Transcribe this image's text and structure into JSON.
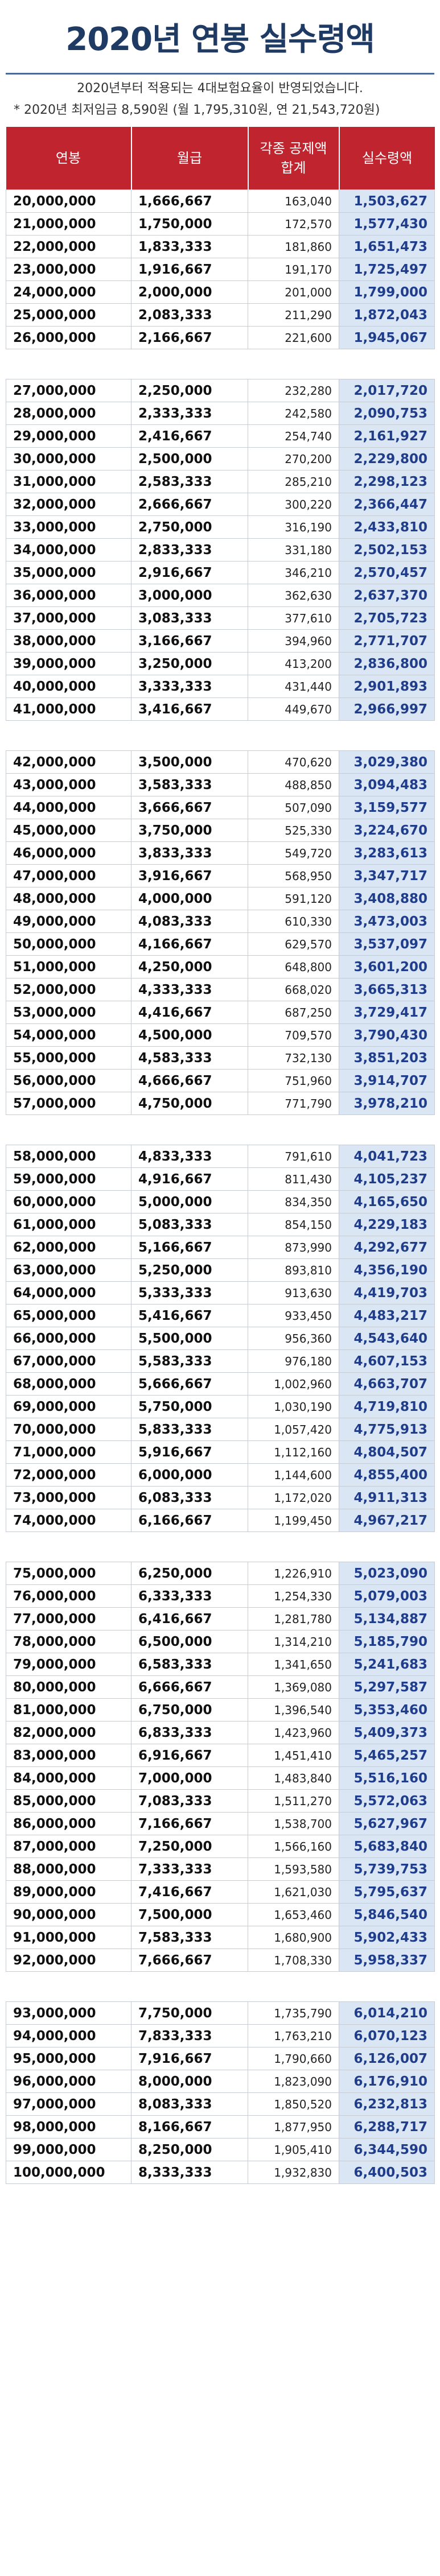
{
  "title": "2020년 연봉 실수령액",
  "notes": [
    "2020년부터 적용되는 4대보험요율이 반영되었습니다.",
    "* 2020년 최저임금 8,590원 (월 1,795,310원, 연 21,543,720원)"
  ],
  "columns": [
    [
      "연봉"
    ],
    [
      "월급"
    ],
    [
      "각종 공제액",
      "합계"
    ],
    [
      "실수령액"
    ]
  ],
  "groups": [
    [
      [
        "20,000,000",
        "1,666,667",
        "163,040",
        "1,503,627"
      ],
      [
        "21,000,000",
        "1,750,000",
        "172,570",
        "1,577,430"
      ],
      [
        "22,000,000",
        "1,833,333",
        "181,860",
        "1,651,473"
      ],
      [
        "23,000,000",
        "1,916,667",
        "191,170",
        "1,725,497"
      ],
      [
        "24,000,000",
        "2,000,000",
        "201,000",
        "1,799,000"
      ],
      [
        "25,000,000",
        "2,083,333",
        "211,290",
        "1,872,043"
      ],
      [
        "26,000,000",
        "2,166,667",
        "221,600",
        "1,945,067"
      ]
    ],
    [
      [
        "27,000,000",
        "2,250,000",
        "232,280",
        "2,017,720"
      ],
      [
        "28,000,000",
        "2,333,333",
        "242,580",
        "2,090,753"
      ],
      [
        "29,000,000",
        "2,416,667",
        "254,740",
        "2,161,927"
      ],
      [
        "30,000,000",
        "2,500,000",
        "270,200",
        "2,229,800"
      ],
      [
        "31,000,000",
        "2,583,333",
        "285,210",
        "2,298,123"
      ],
      [
        "32,000,000",
        "2,666,667",
        "300,220",
        "2,366,447"
      ],
      [
        "33,000,000",
        "2,750,000",
        "316,190",
        "2,433,810"
      ],
      [
        "34,000,000",
        "2,833,333",
        "331,180",
        "2,502,153"
      ],
      [
        "35,000,000",
        "2,916,667",
        "346,210",
        "2,570,457"
      ],
      [
        "36,000,000",
        "3,000,000",
        "362,630",
        "2,637,370"
      ],
      [
        "37,000,000",
        "3,083,333",
        "377,610",
        "2,705,723"
      ],
      [
        "38,000,000",
        "3,166,667",
        "394,960",
        "2,771,707"
      ],
      [
        "39,000,000",
        "3,250,000",
        "413,200",
        "2,836,800"
      ],
      [
        "40,000,000",
        "3,333,333",
        "431,440",
        "2,901,893"
      ],
      [
        "41,000,000",
        "3,416,667",
        "449,670",
        "2,966,997"
      ]
    ],
    [
      [
        "42,000,000",
        "3,500,000",
        "470,620",
        "3,029,380"
      ],
      [
        "43,000,000",
        "3,583,333",
        "488,850",
        "3,094,483"
      ],
      [
        "44,000,000",
        "3,666,667",
        "507,090",
        "3,159,577"
      ],
      [
        "45,000,000",
        "3,750,000",
        "525,330",
        "3,224,670"
      ],
      [
        "46,000,000",
        "3,833,333",
        "549,720",
        "3,283,613"
      ],
      [
        "47,000,000",
        "3,916,667",
        "568,950",
        "3,347,717"
      ],
      [
        "48,000,000",
        "4,000,000",
        "591,120",
        "3,408,880"
      ],
      [
        "49,000,000",
        "4,083,333",
        "610,330",
        "3,473,003"
      ],
      [
        "50,000,000",
        "4,166,667",
        "629,570",
        "3,537,097"
      ],
      [
        "51,000,000",
        "4,250,000",
        "648,800",
        "3,601,200"
      ],
      [
        "52,000,000",
        "4,333,333",
        "668,020",
        "3,665,313"
      ],
      [
        "53,000,000",
        "4,416,667",
        "687,250",
        "3,729,417"
      ],
      [
        "54,000,000",
        "4,500,000",
        "709,570",
        "3,790,430"
      ],
      [
        "55,000,000",
        "4,583,333",
        "732,130",
        "3,851,203"
      ],
      [
        "56,000,000",
        "4,666,667",
        "751,960",
        "3,914,707"
      ],
      [
        "57,000,000",
        "4,750,000",
        "771,790",
        "3,978,210"
      ]
    ],
    [
      [
        "58,000,000",
        "4,833,333",
        "791,610",
        "4,041,723"
      ],
      [
        "59,000,000",
        "4,916,667",
        "811,430",
        "4,105,237"
      ],
      [
        "60,000,000",
        "5,000,000",
        "834,350",
        "4,165,650"
      ],
      [
        "61,000,000",
        "5,083,333",
        "854,150",
        "4,229,183"
      ],
      [
        "62,000,000",
        "5,166,667",
        "873,990",
        "4,292,677"
      ],
      [
        "63,000,000",
        "5,250,000",
        "893,810",
        "4,356,190"
      ],
      [
        "64,000,000",
        "5,333,333",
        "913,630",
        "4,419,703"
      ],
      [
        "65,000,000",
        "5,416,667",
        "933,450",
        "4,483,217"
      ],
      [
        "66,000,000",
        "5,500,000",
        "956,360",
        "4,543,640"
      ],
      [
        "67,000,000",
        "5,583,333",
        "976,180",
        "4,607,153"
      ],
      [
        "68,000,000",
        "5,666,667",
        "1,002,960",
        "4,663,707"
      ],
      [
        "69,000,000",
        "5,750,000",
        "1,030,190",
        "4,719,810"
      ],
      [
        "70,000,000",
        "5,833,333",
        "1,057,420",
        "4,775,913"
      ],
      [
        "71,000,000",
        "5,916,667",
        "1,112,160",
        "4,804,507"
      ],
      [
        "72,000,000",
        "6,000,000",
        "1,144,600",
        "4,855,400"
      ],
      [
        "73,000,000",
        "6,083,333",
        "1,172,020",
        "4,911,313"
      ],
      [
        "74,000,000",
        "6,166,667",
        "1,199,450",
        "4,967,217"
      ]
    ],
    [
      [
        "75,000,000",
        "6,250,000",
        "1,226,910",
        "5,023,090"
      ],
      [
        "76,000,000",
        "6,333,333",
        "1,254,330",
        "5,079,003"
      ],
      [
        "77,000,000",
        "6,416,667",
        "1,281,780",
        "5,134,887"
      ],
      [
        "78,000,000",
        "6,500,000",
        "1,314,210",
        "5,185,790"
      ],
      [
        "79,000,000",
        "6,583,333",
        "1,341,650",
        "5,241,683"
      ],
      [
        "80,000,000",
        "6,666,667",
        "1,369,080",
        "5,297,587"
      ],
      [
        "81,000,000",
        "6,750,000",
        "1,396,540",
        "5,353,460"
      ],
      [
        "82,000,000",
        "6,833,333",
        "1,423,960",
        "5,409,373"
      ],
      [
        "83,000,000",
        "6,916,667",
        "1,451,410",
        "5,465,257"
      ],
      [
        "84,000,000",
        "7,000,000",
        "1,483,840",
        "5,516,160"
      ],
      [
        "85,000,000",
        "7,083,333",
        "1,511,270",
        "5,572,063"
      ],
      [
        "86,000,000",
        "7,166,667",
        "1,538,700",
        "5,627,967"
      ],
      [
        "87,000,000",
        "7,250,000",
        "1,566,160",
        "5,683,840"
      ],
      [
        "88,000,000",
        "7,333,333",
        "1,593,580",
        "5,739,753"
      ],
      [
        "89,000,000",
        "7,416,667",
        "1,621,030",
        "5,795,637"
      ],
      [
        "90,000,000",
        "7,500,000",
        "1,653,460",
        "5,846,540"
      ],
      [
        "91,000,000",
        "7,583,333",
        "1,680,900",
        "5,902,433"
      ],
      [
        "92,000,000",
        "7,666,667",
        "1,708,330",
        "5,958,337"
      ]
    ],
    [
      [
        "93,000,000",
        "7,750,000",
        "1,735,790",
        "6,014,210"
      ],
      [
        "94,000,000",
        "7,833,333",
        "1,763,210",
        "6,070,123"
      ],
      [
        "95,000,000",
        "7,916,667",
        "1,790,660",
        "6,126,007"
      ],
      [
        "96,000,000",
        "8,000,000",
        "1,823,090",
        "6,176,910"
      ],
      [
        "97,000,000",
        "8,083,333",
        "1,850,520",
        "6,232,813"
      ],
      [
        "98,000,000",
        "8,166,667",
        "1,877,950",
        "6,288,717"
      ],
      [
        "99,000,000",
        "8,250,000",
        "1,905,410",
        "6,344,590"
      ],
      [
        "100,000,000",
        "8,333,333",
        "1,932,830",
        "6,400,503"
      ]
    ]
  ],
  "colors": {
    "title": "#1f3a63",
    "header_bg": "#c0242f",
    "net_bg": "#dbe6f4",
    "net_text": "#1f3d8a"
  }
}
